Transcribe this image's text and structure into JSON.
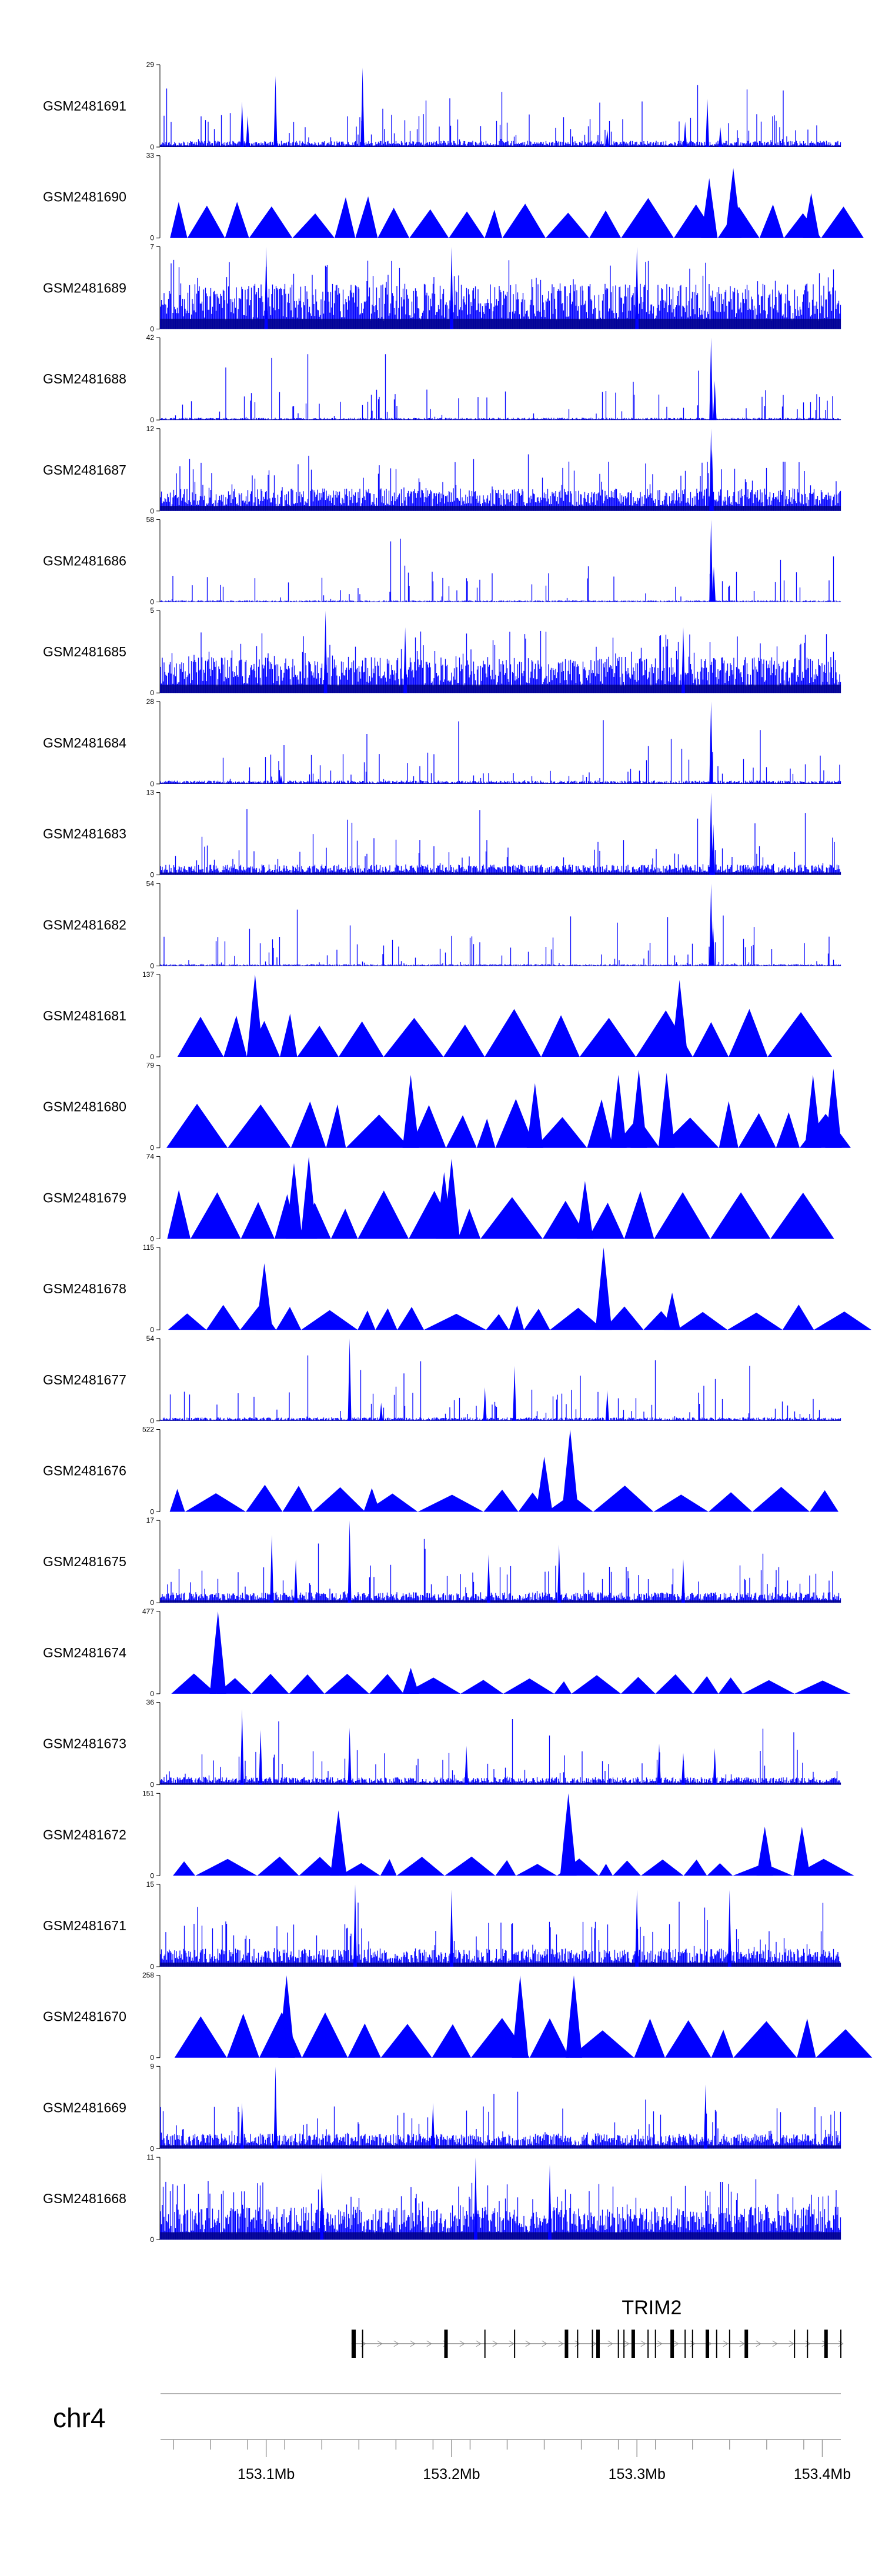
{
  "chart_data": {
    "type": "area",
    "title": "",
    "chromosome": "chr4",
    "gene": "TRIM2",
    "x_range_mb": [
      153.043,
      153.41
    ],
    "x_ticks_mb": [
      153.1,
      153.2,
      153.3,
      153.4
    ],
    "x_tick_labels": [
      "153.1Mb",
      "153.2Mb",
      "153.3Mb",
      "153.4Mb"
    ],
    "series_color": "#0000ff",
    "tracks": [
      {
        "name": "GSM2481691",
        "ymax": 29,
        "style": "dense",
        "baseline": 2,
        "peaks": [
          [
            153.087,
            16
          ],
          [
            153.09,
            11
          ],
          [
            153.105,
            25
          ],
          [
            153.152,
            28
          ],
          [
            153.284,
            6
          ],
          [
            153.326,
            9
          ],
          [
            153.338,
            17
          ],
          [
            153.345,
            7
          ]
        ]
      },
      {
        "name": "GSM2481690",
        "ymax": 33,
        "style": "sparse",
        "baseline": 14,
        "peaks": [
          [
            153.339,
            24
          ],
          [
            153.352,
            28
          ],
          [
            153.394,
            18
          ]
        ]
      },
      {
        "name": "GSM2481689",
        "ymax": 7,
        "style": "dense",
        "baseline": 3.5,
        "peaks": [
          [
            153.1,
            7
          ],
          [
            153.2,
            7
          ],
          [
            153.3,
            7
          ]
        ]
      },
      {
        "name": "GSM2481688",
        "ymax": 42,
        "style": "dense",
        "baseline": 1,
        "peaks": [
          [
            153.34,
            42
          ],
          [
            153.342,
            20
          ]
        ]
      },
      {
        "name": "GSM2481687",
        "ymax": 12,
        "style": "dense",
        "baseline": 3,
        "peaks": [
          [
            153.34,
            12
          ],
          [
            153.3405,
            9
          ]
        ]
      },
      {
        "name": "GSM2481686",
        "ymax": 58,
        "style": "dense",
        "baseline": 1,
        "peaks": [
          [
            153.34,
            58
          ],
          [
            153.3415,
            25
          ]
        ]
      },
      {
        "name": "GSM2481685",
        "ymax": 5,
        "style": "dense",
        "baseline": 2,
        "peaks": [
          [
            153.132,
            5
          ],
          [
            153.175,
            4
          ],
          [
            153.325,
            4
          ]
        ]
      },
      {
        "name": "GSM2481684",
        "ymax": 28,
        "style": "dense",
        "baseline": 1,
        "peaks": [
          [
            153.34,
            28
          ],
          [
            153.108,
            3
          ]
        ]
      },
      {
        "name": "GSM2481683",
        "ymax": 13,
        "style": "dense",
        "baseline": 1.5,
        "peaks": [
          [
            153.34,
            13
          ],
          [
            153.3412,
            8
          ]
        ]
      },
      {
        "name": "GSM2481682",
        "ymax": 54,
        "style": "dense",
        "baseline": 1,
        "peaks": [
          [
            153.34,
            54
          ],
          [
            153.341,
            30
          ]
        ]
      },
      {
        "name": "GSM2481681",
        "ymax": 137,
        "style": "sparse",
        "baseline": 70,
        "peaks": [
          [
            153.094,
            137
          ],
          [
            153.323,
            128
          ]
        ]
      },
      {
        "name": "GSM2481680",
        "ymax": 79,
        "style": "sparse",
        "baseline": 40,
        "peaks": [
          [
            153.178,
            70
          ],
          [
            153.245,
            62
          ],
          [
            153.29,
            70
          ],
          [
            153.301,
            75
          ],
          [
            153.316,
            72
          ],
          [
            153.395,
            70
          ],
          [
            153.406,
            76
          ]
        ]
      },
      {
        "name": "GSM2481679",
        "ymax": 74,
        "style": "sparse",
        "baseline": 38,
        "peaks": [
          [
            153.115,
            68
          ],
          [
            153.123,
            74
          ],
          [
            153.196,
            60
          ],
          [
            153.2,
            72
          ],
          [
            153.272,
            52
          ]
        ]
      },
      {
        "name": "GSM2481678",
        "ymax": 115,
        "style": "sparse",
        "baseline": 30,
        "peaks": [
          [
            153.099,
            93
          ],
          [
            153.282,
            115
          ],
          [
            153.319,
            52
          ]
        ]
      },
      {
        "name": "GSM2481677",
        "ymax": 54,
        "style": "dense",
        "baseline": 2,
        "peaks": [
          [
            153.145,
            54
          ],
          [
            153.218,
            22
          ],
          [
            153.234,
            36
          ],
          [
            153.284,
            20
          ],
          [
            153.162,
            12
          ]
        ]
      },
      {
        "name": "GSM2481676",
        "ymax": 522,
        "style": "sparse",
        "baseline": 150,
        "peaks": [
          [
            153.264,
            522
          ],
          [
            153.25,
            350
          ],
          [
            153.157,
            150
          ]
        ]
      },
      {
        "name": "GSM2481675",
        "ymax": 17,
        "style": "dense",
        "baseline": 2,
        "peaks": [
          [
            153.103,
            14
          ],
          [
            153.145,
            17
          ],
          [
            153.116,
            9
          ],
          [
            153.22,
            10
          ],
          [
            153.258,
            12
          ],
          [
            153.325,
            9
          ]
        ]
      },
      {
        "name": "GSM2481674",
        "ymax": 477,
        "style": "sparse",
        "baseline": 100,
        "peaks": [
          [
            153.074,
            477
          ],
          [
            153.178,
            150
          ]
        ]
      },
      {
        "name": "GSM2481673",
        "ymax": 36,
        "style": "dense",
        "baseline": 3,
        "peaks": [
          [
            153.087,
            33
          ],
          [
            153.097,
            24
          ],
          [
            153.145,
            25
          ],
          [
            153.208,
            17
          ],
          [
            153.312,
            18
          ],
          [
            153.342,
            16
          ],
          [
            153.325,
            14
          ]
        ]
      },
      {
        "name": "GSM2481672",
        "ymax": 151,
        "style": "sparse",
        "baseline": 30,
        "peaks": [
          [
            153.139,
            120
          ],
          [
            153.263,
            151
          ],
          [
            153.369,
            90
          ],
          [
            153.389,
            90
          ]
        ]
      },
      {
        "name": "GSM2481671",
        "ymax": 15,
        "style": "dense",
        "baseline": 3,
        "peaks": [
          [
            153.148,
            15
          ],
          [
            153.2,
            14
          ],
          [
            153.3,
            14
          ],
          [
            153.35,
            14
          ]
        ]
      },
      {
        "name": "GSM2481670",
        "ymax": 258,
        "style": "sparse",
        "baseline": 120,
        "peaks": [
          [
            153.111,
            258
          ],
          [
            153.237,
            258
          ],
          [
            153.266,
            258
          ]
        ]
      },
      {
        "name": "GSM2481669",
        "ymax": 9,
        "style": "dense",
        "baseline": 1.5,
        "peaks": [
          [
            153.105,
            9
          ],
          [
            153.087,
            5
          ],
          [
            153.337,
            7
          ],
          [
            153.19,
            5
          ]
        ]
      },
      {
        "name": "GSM2481668",
        "ymax": 11,
        "style": "dense",
        "baseline": 4,
        "peaks": [
          [
            153.213,
            11
          ],
          [
            153.253,
            10
          ],
          [
            153.13,
            9
          ]
        ]
      }
    ],
    "gene_model": {
      "name": "TRIM2",
      "start_mb": 153.146,
      "end_mb": 153.41,
      "exons_mb": [
        153.147,
        153.148,
        153.152,
        153.197,
        153.218,
        153.234,
        153.262,
        153.268,
        153.276,
        153.279,
        153.29,
        153.293,
        153.298,
        153.306,
        153.31,
        153.319,
        153.326,
        153.33,
        153.338,
        153.343,
        153.35,
        153.359,
        153.385,
        153.392,
        153.402,
        153.41
      ]
    }
  }
}
